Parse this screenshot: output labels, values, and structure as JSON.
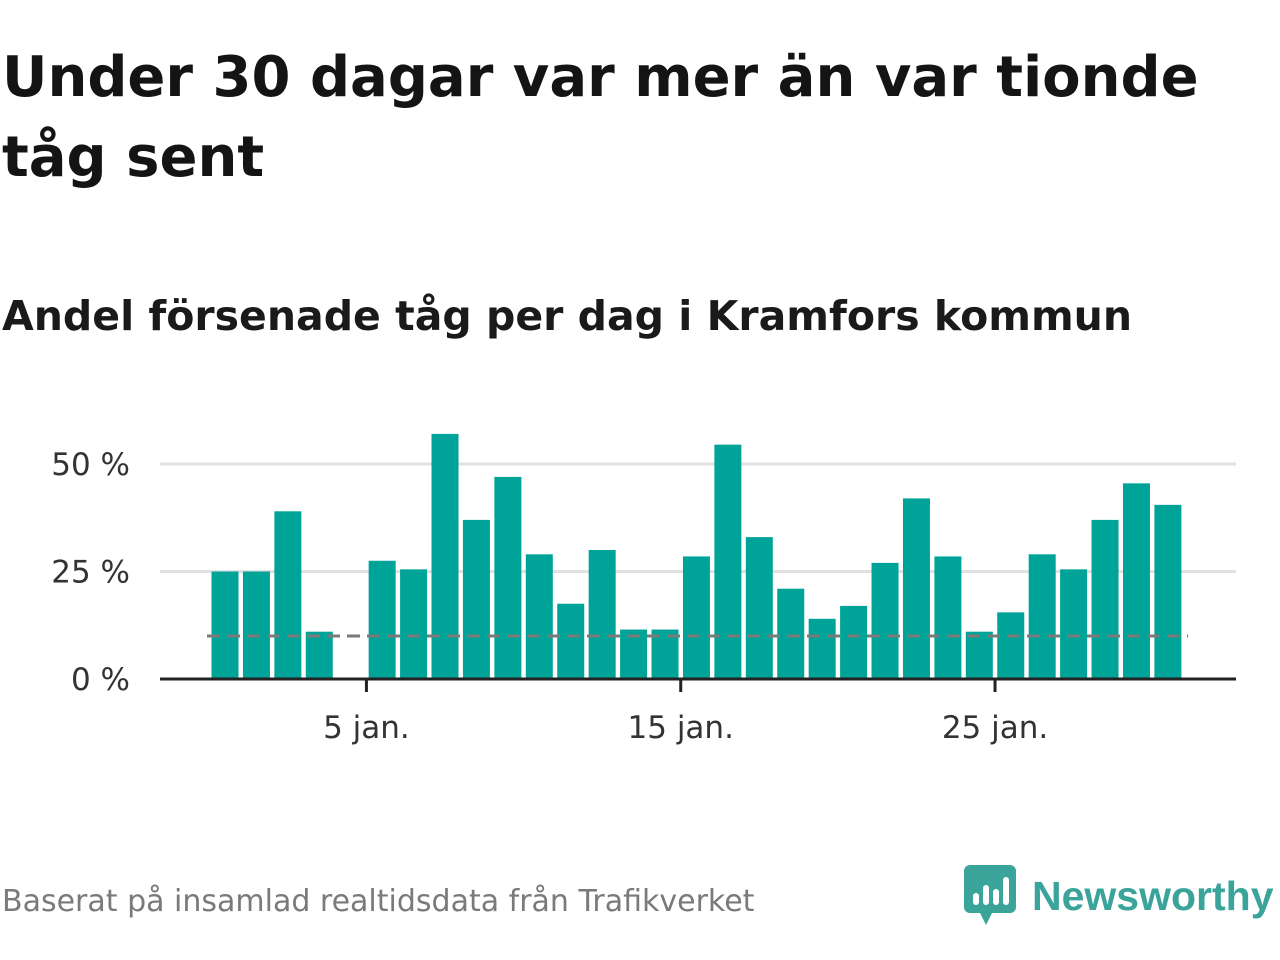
{
  "title": "Under 30 dagar var mer än var tionde tåg sent",
  "subtitle": "Andel försenade tåg per dag i Kramfors kommun",
  "footer": {
    "source": "Baserat på insamlad realtidsdata från Trafikverket",
    "brand": "Newsworthy"
  },
  "colors": {
    "bar": "#00a397",
    "reference_line": "#7a7a7a",
    "grid": "#e1e1e1",
    "axis": "#222222",
    "brand": "#3aa39a"
  },
  "icons": {
    "brand_logo": "bar-chart-speech-bubble-icon"
  },
  "chart_data": {
    "type": "bar",
    "x": [
      1,
      2,
      3,
      4,
      5,
      6,
      7,
      8,
      9,
      10,
      11,
      12,
      13,
      14,
      15,
      16,
      17,
      18,
      19,
      20,
      21,
      22,
      23,
      24,
      25,
      26,
      27,
      28,
      29,
      30,
      31
    ],
    "values": [
      25,
      25,
      39,
      11,
      null,
      27.5,
      25.5,
      57,
      37,
      47,
      29,
      17.5,
      30,
      11.5,
      11.5,
      28.5,
      54.5,
      33,
      21,
      14,
      17,
      27,
      42,
      28.5,
      11,
      15.5,
      29,
      25.5,
      37,
      45.5,
      40.5
    ],
    "reference_line": 10,
    "x_ticks": [
      {
        "value": 5,
        "label": "5 jan."
      },
      {
        "value": 15,
        "label": "15 jan."
      },
      {
        "value": 25,
        "label": "25 jan."
      }
    ],
    "y_ticks": [
      {
        "value": 0,
        "label": "0 %"
      },
      {
        "value": 25,
        "label": "25 %"
      },
      {
        "value": 50,
        "label": "50 %"
      }
    ],
    "ylim": [
      0,
      60
    ],
    "grid": true
  }
}
